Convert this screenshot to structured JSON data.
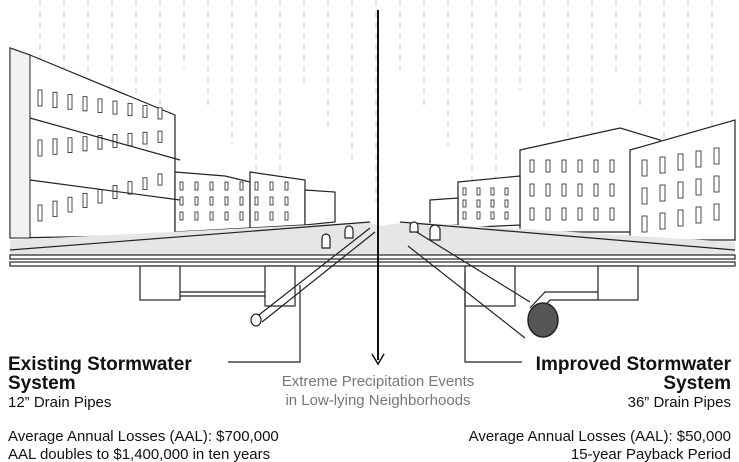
{
  "left": {
    "title_lines": [
      "Existing Stormwater",
      "System"
    ],
    "subtitle": "12” Drain Pipes",
    "notes": [
      "Average Annual Losses (AAL): $700,000",
      "AAL doubles to $1,400,000 in ten years"
    ]
  },
  "center": {
    "lines": [
      "Extreme Precipitation Events",
      "in Low-lying Neighborhoods"
    ]
  },
  "right": {
    "title_lines": [
      "Improved Stormwater",
      "System"
    ],
    "subtitle": "36” Drain Pipes",
    "notes": [
      "Average Annual Losses (AAL): $50,000",
      "15-year Payback Period"
    ]
  }
}
